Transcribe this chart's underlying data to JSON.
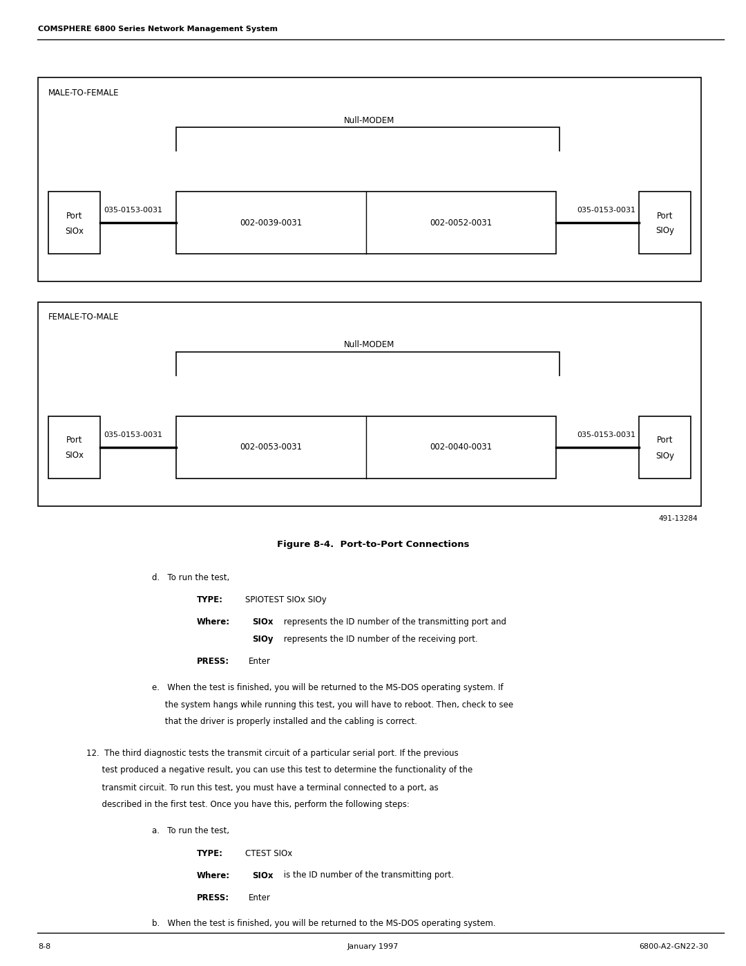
{
  "header_text": "COMSPHERE 6800 Series Network Management System",
  "footer_left": "8-8",
  "footer_center": "January 1997",
  "footer_right": "6800-A2-GN22-30",
  "figure_caption": "Figure 8-4.  Port-to-Port Connections",
  "figure_id": "491-13284",
  "diagram1_title": "MALE-TO-FEMALE",
  "diagram2_title": "FEMALE-TO-MALE",
  "null_modem_label": "Null-MODEM",
  "port_x_label1": "Port\nSIOx",
  "port_y_label1": "Port\nSIOy",
  "port_x_label2": "Port\nSIOx",
  "port_y_label2": "Port\nSIOy",
  "cable1_left": "035-0153-0031",
  "cable1_mid_left": "002-0039-0031",
  "cable1_mid_right": "002-0052-0031",
  "cable1_right": "035-0153-0031",
  "cable2_left": "035-0153-0031",
  "cable2_mid_left": "002-0053-0031",
  "cable2_mid_right": "002-0040-0031",
  "cable2_right": "035-0153-0031",
  "text_d": "d. To run the test,",
  "text_type_label": "TYPE:",
  "text_type_value": "  SPIOTEST SIOx SIOy",
  "text_where_label": "Where:",
  "text_where_bold": "SIOx",
  "text_where_rest": " represents the ID number of the transmitting port and",
  "text_where2_bold": "SIOy",
  "text_where2_rest": " represents the ID number of the receiving port.",
  "text_press_label": "PRESS:",
  "text_press_value": " Enter",
  "text_e": "e. When the test is finished, you will be returned to the MS-DOS operating system. If\n    the system hangs while running this test, you will have to reboot. Then, check to see\n    that the driver is properly installed and the cabling is correct.",
  "text_12": "12. The third diagnostic tests the transmit circuit of a particular serial port. If the previous\n     test produced a negative result, you can use this test to determine the functionality of the\n     transmit circuit. To run this test, you must have a terminal connected to a port, as\n     described in the first test. Once you have this, perform the following steps:",
  "text_12a": "a. To run the test,",
  "text_type2_label": "TYPE:",
  "text_type2_value": "  CTEST SIOx",
  "text_where3_label": "Where:",
  "text_where3_bold": "SIOx",
  "text_where3_rest": " is the ID number of the transmitting port.",
  "text_press2_label": "PRESS:",
  "text_press2_value": " Enter",
  "text_12b": "b. When the test is finished, you will be returned to the MS-DOS operating system.",
  "bg_color": "#ffffff",
  "box_color": "#000000",
  "text_color": "#000000"
}
